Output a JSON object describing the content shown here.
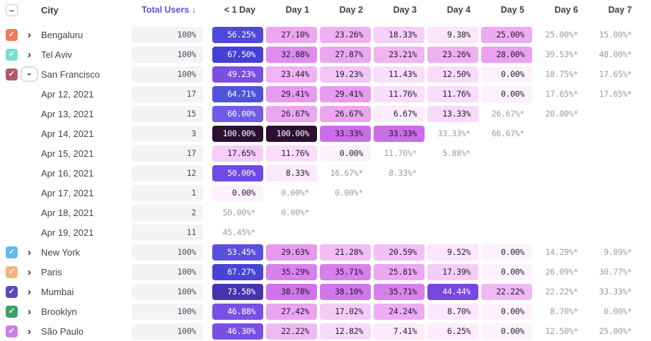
{
  "header": {
    "city": "City",
    "total_users": "Total Users",
    "days": [
      "< 1 Day",
      "Day 1",
      "Day 2",
      "Day 3",
      "Day 4",
      "Day 5",
      "Day 6",
      "Day 7"
    ]
  },
  "icons": {
    "select_all_minus": "–",
    "check": "✓",
    "chevron": "›",
    "sort_desc": " ↓"
  },
  "colors": {
    "accent": "#5b53e0",
    "estimated_text": "#9b9ca6",
    "total_cell_bg": "#f4f4f6"
  },
  "rows": [
    {
      "kind": "city",
      "label": "Bengaluru",
      "checkbox_color": "#f4775e",
      "expanded": false,
      "total": "100%",
      "cells": [
        {
          "v": "56.25%",
          "bg": "#4f49db",
          "light": true
        },
        {
          "v": "27.10%",
          "bg": "#eda7f1"
        },
        {
          "v": "23.26%",
          "bg": "#efb0f3"
        },
        {
          "v": "18.33%",
          "bg": "#f6d0f8"
        },
        {
          "v": "9.38%",
          "bg": "#fbe7fc"
        },
        {
          "v": "25.00%",
          "bg": "#eeabf2"
        },
        {
          "v": "25.00%*",
          "est": true
        },
        {
          "v": "15.00%*",
          "est": true
        }
      ]
    },
    {
      "kind": "city",
      "label": "Tel Aviv",
      "checkbox_color": "#7cddd0",
      "expanded": false,
      "total": "100%",
      "cells": [
        {
          "v": "67.50%",
          "bg": "#4440d4",
          "light": true
        },
        {
          "v": "32.88%",
          "bg": "#e18bee"
        },
        {
          "v": "27.87%",
          "bg": "#eba6f1"
        },
        {
          "v": "23.21%",
          "bg": "#f0b4f3"
        },
        {
          "v": "23.26%",
          "bg": "#efb0f2"
        },
        {
          "v": "28.00%",
          "bg": "#eba1f0"
        },
        {
          "v": "39.53%*",
          "est": true
        },
        {
          "v": "48.00%*",
          "est": true
        }
      ]
    },
    {
      "kind": "city",
      "label": "San Francisco",
      "checkbox_color": "#b25a6d",
      "expanded": true,
      "total": "100%",
      "cells": [
        {
          "v": "49.23%",
          "bg": "#7b4fe0",
          "light": true
        },
        {
          "v": "23.44%",
          "bg": "#f0b3f3"
        },
        {
          "v": "19.23%",
          "bg": "#f4c6f7"
        },
        {
          "v": "11.43%",
          "bg": "#f9defb"
        },
        {
          "v": "12.50%",
          "bg": "#f9dcfa"
        },
        {
          "v": "0.00%",
          "bg": "#fdf1fe"
        },
        {
          "v": "18.75%*",
          "est": true
        },
        {
          "v": "17.65%*",
          "est": true
        }
      ]
    },
    {
      "kind": "date",
      "label": "Apr 12, 2021",
      "total": "17",
      "cells": [
        {
          "v": "64.71%",
          "bg": "#4f52dc",
          "light": true
        },
        {
          "v": "29.41%",
          "bg": "#e79af0"
        },
        {
          "v": "29.41%",
          "bg": "#e79af0"
        },
        {
          "v": "11.76%",
          "bg": "#f9ddfb"
        },
        {
          "v": "11.76%",
          "bg": "#f9ddfb"
        },
        {
          "v": "0.00%",
          "bg": "#fdf1fe"
        },
        {
          "v": "17.65%*",
          "est": true
        },
        {
          "v": "17.65%*",
          "est": true
        }
      ]
    },
    {
      "kind": "date",
      "label": "Apr 13, 2021",
      "total": "15",
      "cells": [
        {
          "v": "60.00%",
          "bg": "#6f5be8",
          "light": true
        },
        {
          "v": "26.67%",
          "bg": "#eca6f1"
        },
        {
          "v": "26.67%",
          "bg": "#eca6f1"
        },
        {
          "v": "6.67%",
          "bg": "#fcecfd"
        },
        {
          "v": "13.33%",
          "bg": "#f8dafa"
        },
        {
          "v": "26.67%*",
          "est": true
        },
        {
          "v": "20.00%*",
          "est": true
        },
        null
      ]
    },
    {
      "kind": "date",
      "label": "Apr 14, 2021",
      "total": "3",
      "cells": [
        {
          "v": "100.00%",
          "bg": "#2c1032",
          "light": true
        },
        {
          "v": "100.00%",
          "bg": "#2c1032",
          "light": true
        },
        {
          "v": "33.33%",
          "bg": "#cb6de9"
        },
        {
          "v": "33.33%",
          "bg": "#cb6de9"
        },
        {
          "v": "33.33%*",
          "est": true
        },
        {
          "v": "66.67%*",
          "est": true
        },
        null,
        null
      ]
    },
    {
      "kind": "date",
      "label": "Apr 15, 2021",
      "total": "17",
      "cells": [
        {
          "v": "17.65%",
          "bg": "#f5cdf8"
        },
        {
          "v": "11.76%",
          "bg": "#f9ddfb"
        },
        {
          "v": "0.00%",
          "bg": "#fdf1fe"
        },
        {
          "v": "11.76%*",
          "est": true
        },
        {
          "v": "5.88%*",
          "est": true
        },
        null,
        null,
        null
      ]
    },
    {
      "kind": "date",
      "label": "Apr 16, 2021",
      "total": "12",
      "cells": [
        {
          "v": "50.00%",
          "bg": "#6d49e8",
          "light": true
        },
        {
          "v": "8.33%",
          "bg": "#fbe8fc"
        },
        {
          "v": "16.67%*",
          "est": true
        },
        {
          "v": "8.33%*",
          "est": true
        },
        null,
        null,
        null,
        null
      ]
    },
    {
      "kind": "date",
      "label": "Apr 17, 2021",
      "total": "1",
      "cells": [
        {
          "v": "0.00%",
          "bg": "#fdf1fe"
        },
        {
          "v": "0.00%*",
          "est": true
        },
        {
          "v": "0.00%*",
          "est": true
        },
        null,
        null,
        null,
        null,
        null
      ]
    },
    {
      "kind": "date",
      "label": "Apr 18, 2021",
      "total": "2",
      "cells": [
        {
          "v": "50.00%*",
          "est": true
        },
        {
          "v": "0.00%*",
          "est": true
        },
        null,
        null,
        null,
        null,
        null,
        null
      ]
    },
    {
      "kind": "date",
      "label": "Apr 19, 2021",
      "total": "11",
      "cells": [
        {
          "v": "45.45%*",
          "est": true
        },
        null,
        null,
        null,
        null,
        null,
        null,
        null
      ]
    },
    {
      "kind": "city",
      "label": "New York",
      "checkbox_color": "#62b8f0",
      "expanded": false,
      "total": "100%",
      "cells": [
        {
          "v": "53.45%",
          "bg": "#5a4fdd",
          "light": true
        },
        {
          "v": "29.63%",
          "bg": "#e799f0"
        },
        {
          "v": "21.28%",
          "bg": "#f2bcf5"
        },
        {
          "v": "20.59%",
          "bg": "#f3c0f6"
        },
        {
          "v": "9.52%",
          "bg": "#fbe6fc"
        },
        {
          "v": "0.00%",
          "bg": "#fdf1fe"
        },
        {
          "v": "14.29%*",
          "est": true
        },
        {
          "v": "9.09%*",
          "est": true
        }
      ]
    },
    {
      "kind": "city",
      "label": "Paris",
      "checkbox_color": "#f9b27c",
      "expanded": false,
      "total": "100%",
      "cells": [
        {
          "v": "67.27%",
          "bg": "#4743d6",
          "light": true
        },
        {
          "v": "35.29%",
          "bg": "#da80ed"
        },
        {
          "v": "35.71%",
          "bg": "#d97fec"
        },
        {
          "v": "25.81%",
          "bg": "#eda8f1"
        },
        {
          "v": "17.39%",
          "bg": "#f5ccf8"
        },
        {
          "v": "0.00%",
          "bg": "#fdf1fe"
        },
        {
          "v": "26.09%*",
          "est": true
        },
        {
          "v": "30.77%*",
          "est": true
        }
      ]
    },
    {
      "kind": "city",
      "label": "Mumbai",
      "checkbox_color": "#584bbd",
      "expanded": false,
      "total": "100%",
      "cells": [
        {
          "v": "73.58%",
          "bg": "#4733b0",
          "light": true
        },
        {
          "v": "38.78%",
          "bg": "#d073ea"
        },
        {
          "v": "38.10%",
          "bg": "#d177eb"
        },
        {
          "v": "35.71%",
          "bg": "#d97fec"
        },
        {
          "v": "44.44%",
          "bg": "#7547e3",
          "light": true
        },
        {
          "v": "22.22%",
          "bg": "#f1b8f4"
        },
        {
          "v": "22.22%*",
          "est": true
        },
        {
          "v": "33.33%*",
          "est": true
        }
      ]
    },
    {
      "kind": "city",
      "label": "Brooklyn",
      "checkbox_color": "#3aa268",
      "expanded": false,
      "total": "100%",
      "cells": [
        {
          "v": "46.88%",
          "bg": "#7a50e4",
          "light": true
        },
        {
          "v": "27.42%",
          "bg": "#eba4f1"
        },
        {
          "v": "17.02%",
          "bg": "#f5ccf8"
        },
        {
          "v": "24.24%",
          "bg": "#eeadf2"
        },
        {
          "v": "8.70%",
          "bg": "#fbe7fc"
        },
        {
          "v": "0.00%",
          "bg": "#fdf1fe"
        },
        {
          "v": "8.70%*",
          "est": true
        },
        {
          "v": "0.00%*",
          "est": true
        }
      ]
    },
    {
      "kind": "city",
      "label": "São Paulo",
      "checkbox_color": "#c97fe8",
      "expanded": false,
      "total": "100%",
      "cells": [
        {
          "v": "46.30%",
          "bg": "#7a50e4",
          "light": true
        },
        {
          "v": "22.22%",
          "bg": "#f1b8f4"
        },
        {
          "v": "12.82%",
          "bg": "#f8dafa"
        },
        {
          "v": "7.41%",
          "bg": "#fcebfd"
        },
        {
          "v": "6.25%",
          "bg": "#fcecfd"
        },
        {
          "v": "0.00%",
          "bg": "#fdf1fe"
        },
        {
          "v": "12.50%*",
          "est": true
        },
        {
          "v": "25.00%*",
          "est": true
        }
      ]
    }
  ]
}
